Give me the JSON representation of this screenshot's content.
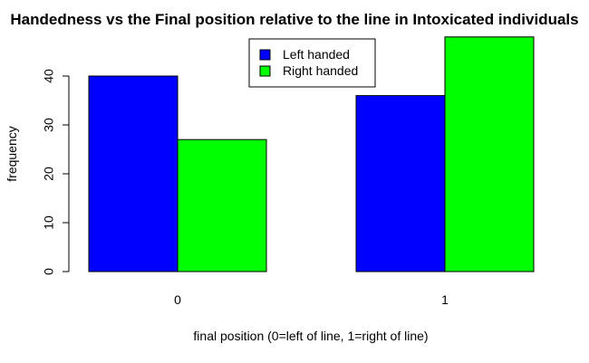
{
  "chart_data": {
    "type": "bar",
    "title": "Handedness vs the Final position relative to the line in Intoxicated individuals",
    "xlabel": "final position (0=left of line, 1=right of line)",
    "ylabel": "frequency",
    "categories": [
      "0",
      "1"
    ],
    "series": [
      {
        "name": "Left handed",
        "color": "#0000FF",
        "values": [
          40,
          36
        ]
      },
      {
        "name": "Right handed",
        "color": "#00FF00",
        "values": [
          27,
          48
        ]
      }
    ],
    "yticks": [
      "0",
      "10",
      "20",
      "30",
      "40"
    ],
    "ylim": [
      0,
      48
    ],
    "legend_position": "top"
  }
}
